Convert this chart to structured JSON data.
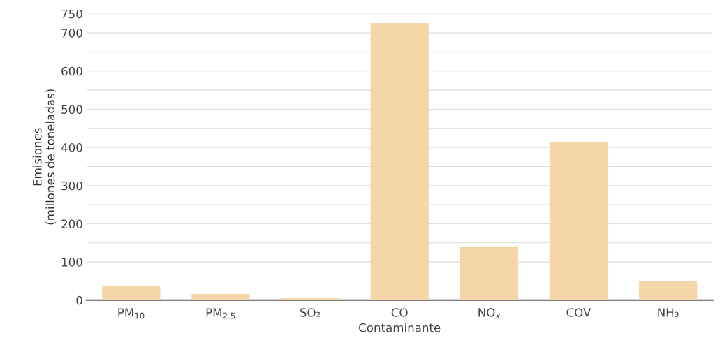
{
  "chart_data": {
    "type": "bar",
    "xlabel": "Contaminante",
    "ylabel": "Emisiones\n(millones de toneladas)",
    "categories": [
      "PM$_{10}$",
      "PM$_{2.5}$",
      "SO₂",
      "CO",
      "NO$_{x}$",
      "COV",
      "NH₃"
    ],
    "values": [
      38,
      16,
      5,
      726,
      141,
      415,
      50
    ],
    "color": "#f5d6a8",
    "ylim": [
      0,
      750
    ],
    "yticks": [
      0,
      {
        "value": 50,
        "label": null
      },
      100,
      {
        "value": 150,
        "label": null
      },
      200,
      {
        "value": 250,
        "label": null
      },
      300,
      {
        "value": 350,
        "label": null
      },
      400,
      {
        "value": 450,
        "label": null
      },
      500,
      {
        "value": 550,
        "label": null
      },
      600,
      {
        "value": 650,
        "label": null
      },
      700,
      750
    ],
    "grid": "y"
  }
}
